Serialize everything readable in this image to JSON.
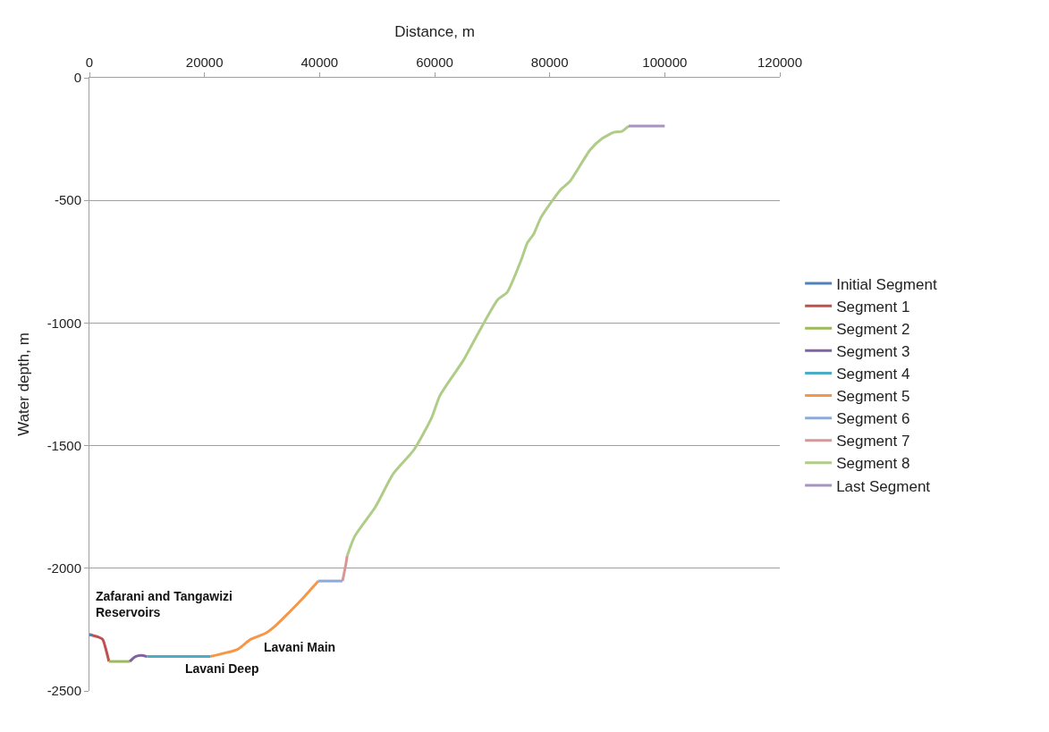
{
  "chart_data": {
    "type": "line",
    "xlabel": "Distance, m",
    "ylabel": "Water depth, m",
    "xlim": [
      0,
      120000
    ],
    "xticks": [
      0,
      20000,
      40000,
      60000,
      80000,
      100000,
      120000
    ],
    "ylim": [
      -2500,
      0
    ],
    "yticks": [
      -2500,
      -2000,
      -1500,
      -1000,
      -500,
      0
    ],
    "grid": "y",
    "legend": "right",
    "marker": "none",
    "line_style": "solid",
    "series": [
      {
        "name": "Initial Segment",
        "color": "#4f81bd",
        "x": [
          0,
          500
        ],
        "values": [
          -2270,
          -2272
        ]
      },
      {
        "name": "Segment 1",
        "color": "#c0504d",
        "x": [
          0,
          1500,
          2300,
          2800,
          3400
        ],
        "values": [
          -2270,
          -2280,
          -2290,
          -2325,
          -2380
        ]
      },
      {
        "name": "Segment 2",
        "color": "#9bbb59",
        "x": [
          3400,
          7000
        ],
        "values": [
          -2380,
          -2380
        ]
      },
      {
        "name": "Segment 3",
        "color": "#8064a2",
        "x": [
          7000,
          8000,
          9000,
          10000
        ],
        "values": [
          -2380,
          -2360,
          -2355,
          -2360
        ]
      },
      {
        "name": "Segment 4",
        "color": "#4bacc6",
        "x": [
          10000,
          21000
        ],
        "values": [
          -2360,
          -2360
        ]
      },
      {
        "name": "Segment 5",
        "color": "#f79646",
        "x": [
          21000,
          25800,
          28000,
          30600,
          32300,
          34700,
          37300,
          39800
        ],
        "values": [
          -2360,
          -2330,
          -2290,
          -2265,
          -2235,
          -2180,
          -2117,
          -2052
        ]
      },
      {
        "name": "Segment 6",
        "color": "#8eaad8",
        "x": [
          39800,
          44000
        ],
        "values": [
          -2052,
          -2052
        ]
      },
      {
        "name": "Segment 7",
        "color": "#d99694",
        "x": [
          44000,
          44600,
          44800
        ],
        "values": [
          -2052,
          -1980,
          -1950
        ]
      },
      {
        "name": "Segment 8",
        "color": "#afcc88",
        "x": [
          44800,
          46100,
          49700,
          52800,
          56400,
          59500,
          60900,
          65000,
          66800,
          71000,
          72600,
          75100,
          76100,
          77200,
          78500,
          81900,
          83500,
          87000,
          89100,
          91200,
          92500,
          93700
        ],
        "values": [
          -1950,
          -1870,
          -1750,
          -1615,
          -1517,
          -1385,
          -1297,
          -1152,
          -1075,
          -904,
          -875,
          -740,
          -674,
          -638,
          -569,
          -456,
          -423,
          -295,
          -248,
          -222,
          -219,
          -197
        ]
      },
      {
        "name": "Last Segment",
        "color": "#a894c0",
        "x": [
          93700,
          100000
        ],
        "values": [
          -197,
          -197
        ]
      }
    ],
    "annotations": [
      "Zafarani and Tangawizi\nReservoirs",
      "Lavani Deep",
      "Lavani Main"
    ]
  }
}
